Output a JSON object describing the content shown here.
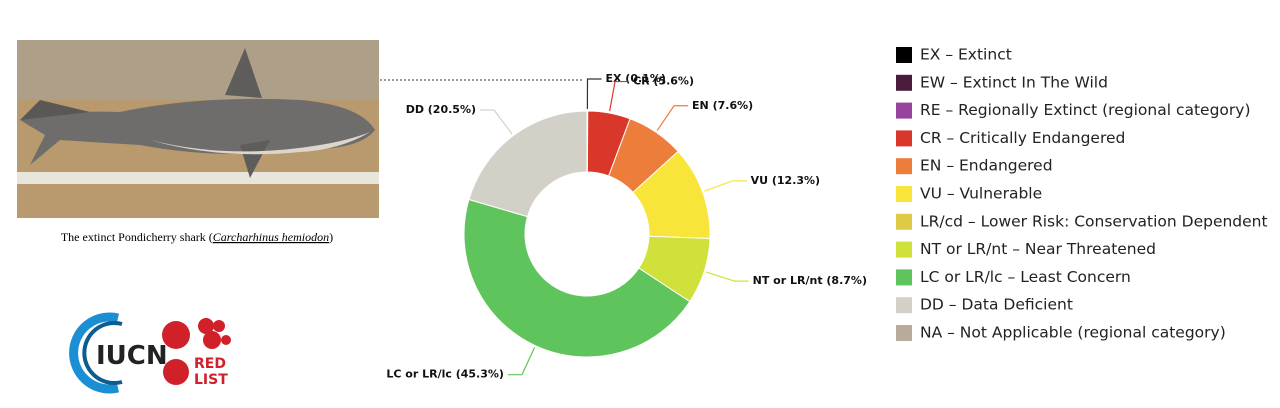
{
  "chart_data": {
    "type": "donut",
    "categories": [
      "EX",
      "CR",
      "EN",
      "VU",
      "NT or LR/nt",
      "LC or LR/lc",
      "DD"
    ],
    "values": [
      0.1,
      5.6,
      7.6,
      12.3,
      8.7,
      45.3,
      20.5
    ],
    "value_labels": [
      "EX (0.1%)",
      "CR (5.6%)",
      "EN (7.6%)",
      "VU (12.3%)",
      "NT or LR/nt (8.7%)",
      "LC or LR/lc (45.3%)",
      "DD (20.5%)"
    ],
    "colors": [
      "#000000",
      "#d9372a",
      "#ed7d3a",
      "#f9e43a",
      "#cfe13a",
      "#5ec45b",
      "#d3d1c7"
    ],
    "legend": [
      {
        "name": "EX – Extinct",
        "color": "#000000"
      },
      {
        "name": "EW – Extinct In The Wild",
        "color": "#4a1c3b"
      },
      {
        "name": "RE – Regionally Extinct (regional category)",
        "color": "#96449d"
      },
      {
        "name": "CR – Critically Endangered",
        "color": "#d9372a"
      },
      {
        "name": "EN – Endangered",
        "color": "#ed7d3a"
      },
      {
        "name": "VU – Vulnerable",
        "color": "#f9e43a"
      },
      {
        "name": "LR/cd – Lower Risk: Conservation Dependent",
        "color": "#dfca45"
      },
      {
        "name": "NT or LR/nt – Near Threatened",
        "color": "#cfe13a"
      },
      {
        "name": "LC or LR/lc – Least Concern",
        "color": "#5ec45b"
      },
      {
        "name": "DD – Data Deficient",
        "color": "#d3d1c7"
      },
      {
        "name": "NA – Not Applicable (regional category)",
        "color": "#b9ab9a"
      }
    ]
  },
  "caption": {
    "text": "The extinct Pondicherry shark (",
    "species": "Carcharhinus hemiodon",
    "end": ")"
  },
  "logo": {
    "iucn": "IUCN",
    "red": "RED",
    "list": "LIST"
  }
}
